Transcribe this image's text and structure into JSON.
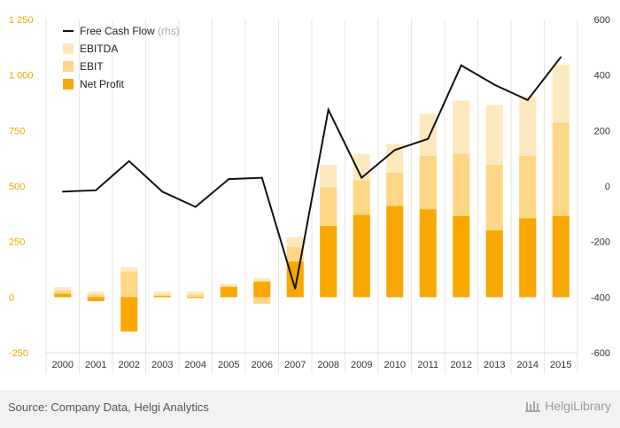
{
  "chart_data": {
    "type": "bar",
    "categories": [
      "2000",
      "2001",
      "2002",
      "2003",
      "2004",
      "2005",
      "2006",
      "2007",
      "2008",
      "2009",
      "2010",
      "2011",
      "2012",
      "2013",
      "2014",
      "2015"
    ],
    "series": [
      {
        "name": "EBITDA",
        "axis": "left",
        "color": "#fde9bd",
        "values": [
          45,
          25,
          135,
          25,
          25,
          60,
          85,
          270,
          595,
          645,
          690,
          825,
          885,
          865,
          905,
          1045
        ]
      },
      {
        "name": "EBIT",
        "axis": "left",
        "color": "#fdd686",
        "values": [
          30,
          12,
          115,
          12,
          12,
          50,
          -30,
          225,
          495,
          525,
          560,
          635,
          645,
          595,
          635,
          785
        ]
      },
      {
        "name": "Net Profit",
        "axis": "left",
        "color": "#f8a800",
        "values": [
          15,
          -18,
          -155,
          5,
          -2,
          45,
          70,
          160,
          320,
          370,
          410,
          395,
          365,
          300,
          355,
          365
        ]
      },
      {
        "name": "Free Cash Flow",
        "axis": "right",
        "type": "line",
        "color": "#111111",
        "values": [
          -20,
          -15,
          90,
          -20,
          -75,
          25,
          30,
          -370,
          275,
          30,
          130,
          170,
          435,
          365,
          310,
          465
        ]
      }
    ],
    "legend": [
      {
        "label": "Free Cash Flow",
        "suffix": "(rhs)"
      },
      {
        "label": "EBITDA"
      },
      {
        "label": "EBIT"
      },
      {
        "label": "Net Profit"
      }
    ],
    "yleft": {
      "lim": [
        -250,
        1250
      ],
      "ticks": [
        -250,
        0,
        250,
        500,
        750,
        1000,
        1250
      ],
      "labels": [
        "-250",
        "0",
        "250",
        "500",
        "750",
        "1 000",
        "1 250"
      ],
      "color": "#f0a800"
    },
    "yright": {
      "lim": [
        -600,
        600
      ],
      "ticks": [
        -600,
        -400,
        -200,
        0,
        200,
        400,
        600
      ],
      "labels": [
        "-600",
        "-400",
        "-200",
        "0",
        "200",
        "400",
        "600"
      ],
      "color": "#333333"
    },
    "grid": "vertical",
    "legend_position": "top-left"
  },
  "footer": {
    "source": "Source: Company Data, Helgi Analytics",
    "logo": "HelgiLibrary"
  }
}
